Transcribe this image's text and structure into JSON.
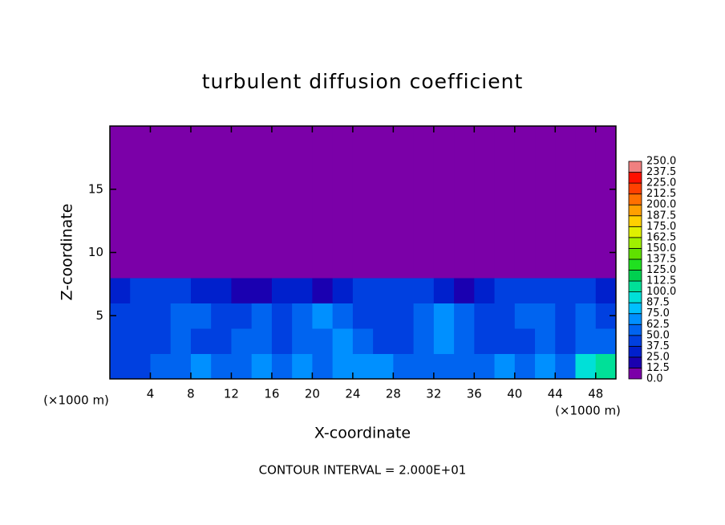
{
  "chart_data": {
    "type": "heatmap",
    "title": "turbulent diffusion coefficient",
    "xlabel": "X-coordinate",
    "ylabel": "Z-coordinate",
    "xunit": "(×1000 m)",
    "yunit": "(×1000 m)",
    "note": "CONTOUR INTERVAL = 2.000E+01",
    "xlim": [
      0,
      50
    ],
    "ylim": [
      0,
      20
    ],
    "xticks": [
      4,
      8,
      12,
      16,
      20,
      24,
      28,
      32,
      36,
      40,
      44,
      48
    ],
    "yticks": [
      5,
      10,
      15
    ],
    "levels": [
      {
        "value": 0,
        "label": "0.0"
      },
      {
        "value": 12.5,
        "label": "12.5"
      },
      {
        "value": 25,
        "label": "25.0"
      },
      {
        "value": 37.5,
        "label": "37.5"
      },
      {
        "value": 50,
        "label": "50.0"
      },
      {
        "value": 62.5,
        "label": "62.5"
      },
      {
        "value": 75,
        "label": "75.0"
      },
      {
        "value": 87.5,
        "label": "87.5"
      },
      {
        "value": 100,
        "label": "100.0"
      },
      {
        "value": 112.5,
        "label": "112.5"
      },
      {
        "value": 125,
        "label": "125.0"
      },
      {
        "value": 137.5,
        "label": "137.5"
      },
      {
        "value": 150,
        "label": "150.0"
      },
      {
        "value": 162.5,
        "label": "162.5"
      },
      {
        "value": 175,
        "label": "175.0"
      },
      {
        "value": 187.5,
        "label": "187.5"
      },
      {
        "value": 200,
        "label": "200.0"
      },
      {
        "value": 212.5,
        "label": "212.5"
      },
      {
        "value": 225,
        "label": "225.0"
      },
      {
        "value": 237.5,
        "label": "237.5"
      },
      {
        "value": 250,
        "label": "250.0"
      }
    ],
    "colors": [
      "#7b00a8",
      "#1a00b0",
      "#0020cc",
      "#0040e0",
      "#0064f0",
      "#0090ff",
      "#00c0ff",
      "#00e0d8",
      "#00e098",
      "#00d050",
      "#20e020",
      "#60e000",
      "#a0f000",
      "#e0f000",
      "#ffd000",
      "#ffa000",
      "#ff7000",
      "#ff4000",
      "#ff1000",
      "#f08080"
    ],
    "field": {
      "x": [
        1,
        3,
        5,
        7,
        9,
        11,
        13,
        15,
        17,
        19,
        21,
        23,
        25,
        27,
        29,
        31,
        33,
        35,
        37,
        39,
        41,
        43,
        45,
        47,
        49
      ],
      "y": [
        1,
        3,
        5,
        7,
        9,
        11,
        13,
        15,
        17,
        19
      ],
      "values": [
        [
          45,
          45,
          50,
          60,
          65,
          55,
          60,
          65,
          60,
          70,
          60,
          65,
          70,
          65,
          60,
          55,
          60,
          55,
          50,
          70,
          60,
          65,
          60,
          90,
          100
        ],
        [
          40,
          38,
          40,
          55,
          45,
          40,
          60,
          55,
          45,
          60,
          50,
          70,
          60,
          40,
          38,
          55,
          65,
          60,
          45,
          40,
          40,
          50,
          45,
          60,
          50
        ],
        [
          42,
          40,
          40,
          55,
          60,
          45,
          40,
          60,
          45,
          50,
          70,
          55,
          45,
          40,
          40,
          60,
          65,
          55,
          45,
          40,
          55,
          50,
          45,
          60,
          45
        ],
        [
          35,
          40,
          45,
          40,
          35,
          30,
          20,
          15,
          25,
          30,
          20,
          35,
          40,
          40,
          45,
          40,
          30,
          15,
          30,
          40,
          45,
          40,
          40,
          45,
          35
        ],
        [
          5,
          10,
          5,
          0,
          0,
          0,
          0,
          0,
          0,
          0,
          0,
          0,
          0,
          0,
          0,
          0,
          0,
          0,
          0,
          0,
          0,
          5,
          10,
          5,
          0
        ],
        [
          0,
          0,
          0,
          0,
          0,
          0,
          0,
          0,
          0,
          0,
          0,
          0,
          0,
          0,
          0,
          0,
          0,
          0,
          0,
          0,
          0,
          0,
          0,
          0,
          0
        ],
        [
          0,
          0,
          0,
          0,
          0,
          0,
          0,
          0,
          0,
          0,
          0,
          0,
          0,
          0,
          0,
          0,
          0,
          0,
          0,
          0,
          0,
          0,
          0,
          0,
          0
        ],
        [
          0,
          0,
          0,
          0,
          0,
          0,
          0,
          0,
          0,
          0,
          0,
          0,
          0,
          0,
          0,
          0,
          0,
          0,
          0,
          0,
          0,
          0,
          0,
          0,
          0
        ],
        [
          0,
          0,
          0,
          0,
          0,
          0,
          0,
          0,
          0,
          0,
          0,
          0,
          0,
          0,
          0,
          0,
          0,
          0,
          0,
          0,
          0,
          0,
          0,
          0,
          0
        ],
        [
          0,
          0,
          0,
          0,
          0,
          0,
          0,
          0,
          0,
          0,
          0,
          0,
          0,
          0,
          0,
          0,
          0,
          0,
          0,
          0,
          0,
          0,
          0,
          0,
          0
        ]
      ]
    }
  }
}
